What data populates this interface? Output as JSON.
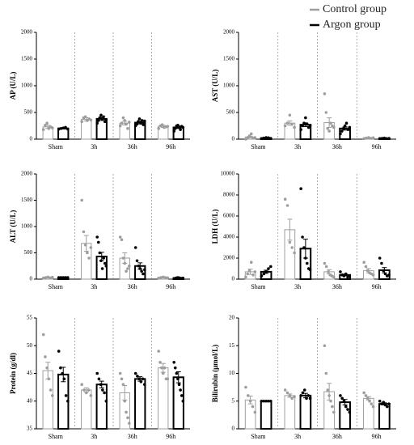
{
  "legend": [
    {
      "name": "Control group",
      "color": "#9e9e9e"
    },
    {
      "name": "Argon group",
      "color": "#000000"
    }
  ],
  "chart_data": [
    {
      "type": "bar",
      "ylabel": "AP (U/L)",
      "categories": [
        "Sham",
        "3h",
        "36h",
        "96h"
      ],
      "ylim": [
        0,
        2000
      ],
      "yticks": [
        0,
        500,
        1000,
        1500,
        2000
      ],
      "series": [
        {
          "color": "#9e9e9e",
          "values": [
            230,
            370,
            300,
            240
          ],
          "errors": [
            30,
            30,
            35,
            20
          ],
          "points": [
            [
              180,
              260,
              300,
              200,
              230,
              210
            ],
            [
              330,
              400,
              420,
              350,
              380,
              360
            ],
            [
              250,
              300,
              400,
              350,
              280,
              200,
              320
            ],
            [
              200,
              250,
              270,
              220,
              230,
              240
            ]
          ]
        },
        {
          "color": "#000000",
          "values": [
            200,
            380,
            310,
            220
          ],
          "errors": [
            10,
            30,
            25,
            20
          ],
          "points": [
            [
              190,
              200,
              210,
              220,
              190
            ],
            [
              300,
              350,
              400,
              450,
              380,
              420,
              330,
              360
            ],
            [
              250,
              280,
              330,
              380,
              300,
              350,
              270,
              340
            ],
            [
              150,
              200,
              250,
              260,
              230,
              180,
              240,
              220
            ]
          ]
        }
      ]
    },
    {
      "type": "bar",
      "ylabel": "AST (U/L)",
      "categories": [
        "Sham",
        "3h",
        "36h",
        "96h"
      ],
      "ylim": [
        0,
        2000
      ],
      "yticks": [
        0,
        500,
        1000,
        1500,
        2000
      ],
      "series": [
        {
          "color": "#9e9e9e",
          "values": [
            40,
            300,
            310,
            20
          ],
          "errors": [
            15,
            40,
            90,
            5
          ],
          "points": [
            [
              0,
              30,
              60,
              100,
              20,
              30
            ],
            [
              250,
              300,
              450,
              280,
              220
            ],
            [
              850,
              500,
              200,
              150,
              300,
              250,
              220
            ],
            [
              10,
              20,
              30,
              15,
              25
            ]
          ]
        },
        {
          "color": "#000000",
          "values": [
            20,
            270,
            200,
            15
          ],
          "errors": [
            5,
            35,
            30,
            3
          ],
          "points": [
            [
              10,
              20,
              30,
              25,
              15
            ],
            [
              180,
              250,
              300,
              400,
              280,
              220,
              260
            ],
            [
              100,
              150,
              200,
              250,
              300,
              180,
              220
            ],
            [
              10,
              15,
              20,
              10,
              15
            ]
          ]
        }
      ]
    },
    {
      "type": "bar",
      "ylabel": "ALT (U/L)",
      "categories": [
        "Sham",
        "3h",
        "36h",
        "96h"
      ],
      "ylim": [
        0,
        2000
      ],
      "yticks": [
        0,
        500,
        1000,
        1500,
        2000
      ],
      "series": [
        {
          "color": "#9e9e9e",
          "values": [
            30,
            680,
            400,
            30
          ],
          "errors": [
            5,
            150,
            100,
            5
          ],
          "points": [
            [
              20,
              30,
              40,
              25,
              35
            ],
            [
              1500,
              900,
              650,
              500,
              400,
              600
            ],
            [
              800,
              750,
              400,
              300,
              150,
              200,
              250
            ],
            [
              20,
              30,
              40,
              30,
              25
            ]
          ]
        },
        {
          "color": "#000000",
          "values": [
            30,
            430,
            250,
            20
          ],
          "errors": [
            0,
            80,
            60,
            5
          ],
          "points": [
            [
              30,
              30,
              30,
              30,
              30
            ],
            [
              800,
              700,
              500,
              350,
              200,
              400,
              300,
              250
            ],
            [
              600,
              350,
              250,
              200,
              150,
              100,
              180
            ],
            [
              10,
              20,
              30,
              25,
              15,
              20
            ]
          ]
        }
      ]
    },
    {
      "type": "bar",
      "ylabel": "LDH (U/L)",
      "categories": [
        "Sham",
        "3h",
        "36h",
        "96h"
      ],
      "ylim": [
        0,
        10000
      ],
      "yticks": [
        0,
        2000,
        4000,
        6000,
        8000,
        10000
      ],
      "series": [
        {
          "color": "#9e9e9e",
          "values": [
            700,
            4700,
            700,
            800
          ],
          "errors": [
            250,
            1000,
            200,
            200
          ],
          "points": [
            [
              200,
              500,
              800,
              1600,
              400,
              700
            ],
            [
              7600,
              7000,
              3500,
              3000,
              2500
            ],
            [
              1500,
              1200,
              700,
              400,
              300,
              200
            ],
            [
              1600,
              1200,
              800,
              600,
              500,
              400
            ]
          ]
        },
        {
          "color": "#000000",
          "values": [
            700,
            2900,
            400,
            850
          ],
          "errors": [
            150,
            900,
            80,
            250
          ],
          "points": [
            [
              300,
              500,
              700,
              1000,
              1200
            ],
            [
              8600,
              4000,
              3000,
              2000,
              1500,
              1000,
              900
            ],
            [
              700,
              400,
              300,
              500,
              200,
              300
            ],
            [
              2000,
              1500,
              800,
              500,
              300,
              400
            ]
          ]
        }
      ]
    },
    {
      "type": "bar",
      "ylabel": "Protein (g/dl)",
      "categories": [
        "Sham",
        "3h",
        "36h",
        "96h"
      ],
      "ylim": [
        35,
        55
      ],
      "yticks": [
        35,
        40,
        45,
        50,
        55
      ],
      "series": [
        {
          "color": "#9e9e9e",
          "values": [
            45.5,
            42,
            41.5,
            46
          ],
          "errors": [
            1.5,
            0.4,
            1.3,
            0.8
          ],
          "points": [
            [
              52,
              48,
              46,
              44,
              42,
              41
            ],
            [
              43,
              42,
              41.5,
              42,
              41
            ],
            [
              45,
              44,
              43,
              40,
              38,
              37,
              36
            ],
            [
              49,
              47,
              46,
              45,
              46,
              44,
              44
            ]
          ]
        },
        {
          "color": "#000000",
          "values": [
            44.8,
            43,
            44,
            44.3
          ],
          "errors": [
            1.3,
            0.6,
            0.4,
            1
          ],
          "points": [
            [
              49,
              46,
              45,
              44,
              41,
              40
            ],
            [
              45,
              44,
              43,
              42,
              41.5,
              40
            ],
            [
              45,
              44.5,
              44,
              43.5,
              44,
              43
            ],
            [
              47,
              46,
              45,
              44,
              43,
              42,
              41,
              40
            ]
          ]
        }
      ]
    },
    {
      "type": "bar",
      "ylabel": "Bilirubin (μmol/L)",
      "categories": [
        "Sham",
        "3h",
        "36h",
        "96h"
      ],
      "ylim": [
        0,
        20
      ],
      "yticks": [
        0,
        5,
        10,
        15,
        20
      ],
      "series": [
        {
          "color": "#9e9e9e",
          "values": [
            5.2,
            6,
            6.7,
            5.5
          ],
          "errors": [
            0.7,
            0.3,
            1.5,
            0.3
          ],
          "points": [
            [
              7.5,
              6,
              5,
              4,
              3
            ],
            [
              7,
              6.5,
              6,
              5.5,
              5.8
            ],
            [
              15,
              10,
              7,
              6,
              5,
              4,
              3
            ],
            [
              6.5,
              6,
              5.5,
              5,
              4.5,
              4
            ]
          ]
        },
        {
          "color": "#000000",
          "values": [
            5,
            6,
            4.8,
            4.5
          ],
          "errors": [
            0,
            0.4,
            0.5,
            0.2
          ],
          "points": [
            [
              5,
              5,
              5,
              5,
              5
            ],
            [
              6,
              6.5,
              7,
              5.5,
              6,
              5.5
            ],
            [
              6,
              5.5,
              5,
              4,
              3.5,
              3
            ],
            [
              5,
              4.5,
              4.8,
              4.3,
              4,
              4.5
            ]
          ]
        }
      ]
    }
  ]
}
